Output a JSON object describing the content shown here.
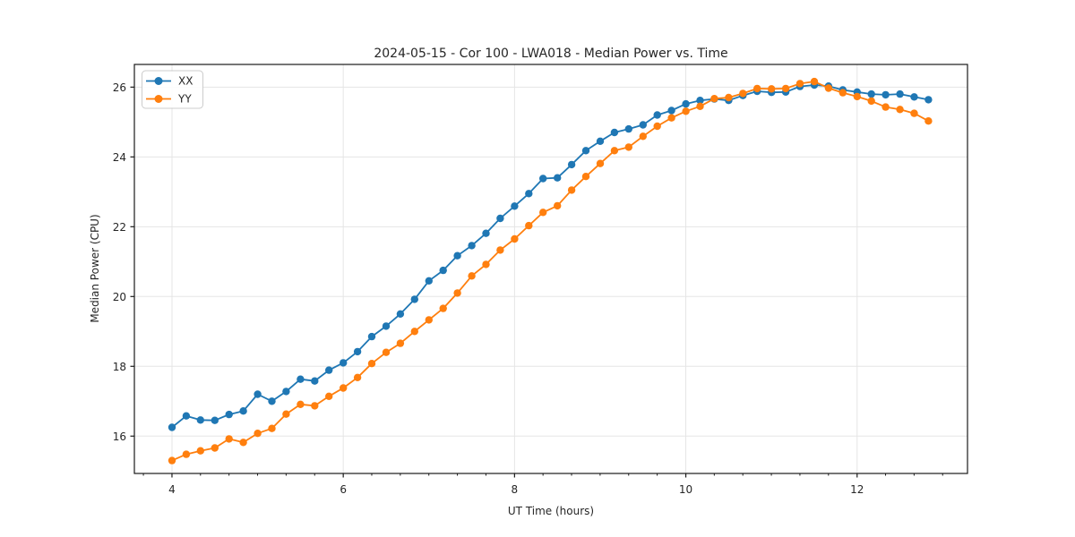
{
  "window": {
    "background": "#ffffff"
  },
  "chart_data": {
    "type": "line",
    "title": "2024-05-15 - Cor 100 - LWA018 - Median Power vs. Time",
    "xlabel": "UT Time (hours)",
    "ylabel": "Median Power (CPU)",
    "xlim": [
      3.561,
      13.289
    ],
    "ylim": [
      14.93,
      26.65
    ],
    "x_major_ticks": [
      4,
      6,
      8,
      10,
      12
    ],
    "x_minor_tick_step": 0.3333,
    "y_major_ticks": [
      16,
      18,
      20,
      22,
      24,
      26
    ],
    "grid": true,
    "grid_color": "#e5e5e5",
    "spine_color": "#1a1a1a",
    "legend_position": "upper-left",
    "x": [
      4.0,
      4.167,
      4.333,
      4.5,
      4.667,
      4.833,
      5.0,
      5.167,
      5.333,
      5.5,
      5.667,
      5.833,
      6.0,
      6.167,
      6.333,
      6.5,
      6.667,
      6.833,
      7.0,
      7.167,
      7.333,
      7.5,
      7.667,
      7.833,
      8.0,
      8.167,
      8.333,
      8.5,
      8.667,
      8.833,
      9.0,
      9.167,
      9.333,
      9.5,
      9.667,
      9.833,
      10.0,
      10.167,
      10.333,
      10.5,
      10.667,
      10.833,
      11.0,
      11.167,
      11.333,
      11.5,
      11.667,
      11.833,
      12.0,
      12.167,
      12.333,
      12.5,
      12.667,
      12.833
    ],
    "series": [
      {
        "name": "XX",
        "color": "#1f77b4",
        "values": [
          16.25,
          16.58,
          16.46,
          16.45,
          16.62,
          16.72,
          17.2,
          17.0,
          17.28,
          17.63,
          17.58,
          17.89,
          18.1,
          18.42,
          18.85,
          19.15,
          19.5,
          19.92,
          20.45,
          20.75,
          21.17,
          21.46,
          21.81,
          22.24,
          22.59,
          22.95,
          23.38,
          23.4,
          23.78,
          24.18,
          24.45,
          24.7,
          24.8,
          24.92,
          25.2,
          25.33,
          25.52,
          25.62,
          25.66,
          25.62,
          25.76,
          25.88,
          25.85,
          25.86,
          26.02,
          26.06,
          26.03,
          25.92,
          25.86,
          25.8,
          25.78,
          25.8,
          25.72,
          25.64
        ]
      },
      {
        "name": "YY",
        "color": "#ff7f0e",
        "values": [
          15.3,
          15.48,
          15.58,
          15.66,
          15.92,
          15.82,
          16.08,
          16.22,
          16.63,
          16.91,
          16.87,
          17.14,
          17.38,
          17.68,
          18.08,
          18.4,
          18.66,
          19.0,
          19.33,
          19.66,
          20.1,
          20.59,
          20.92,
          21.33,
          21.65,
          22.03,
          22.41,
          22.6,
          23.05,
          23.44,
          23.81,
          24.18,
          24.28,
          24.59,
          24.88,
          25.12,
          25.31,
          25.45,
          25.67,
          25.7,
          25.82,
          25.96,
          25.95,
          25.96,
          26.1,
          26.16,
          25.97,
          25.84,
          25.73,
          25.6,
          25.43,
          25.36,
          25.25,
          25.03
        ]
      }
    ],
    "legend": {
      "items": [
        {
          "label": "XX"
        },
        {
          "label": "YY"
        }
      ]
    }
  }
}
